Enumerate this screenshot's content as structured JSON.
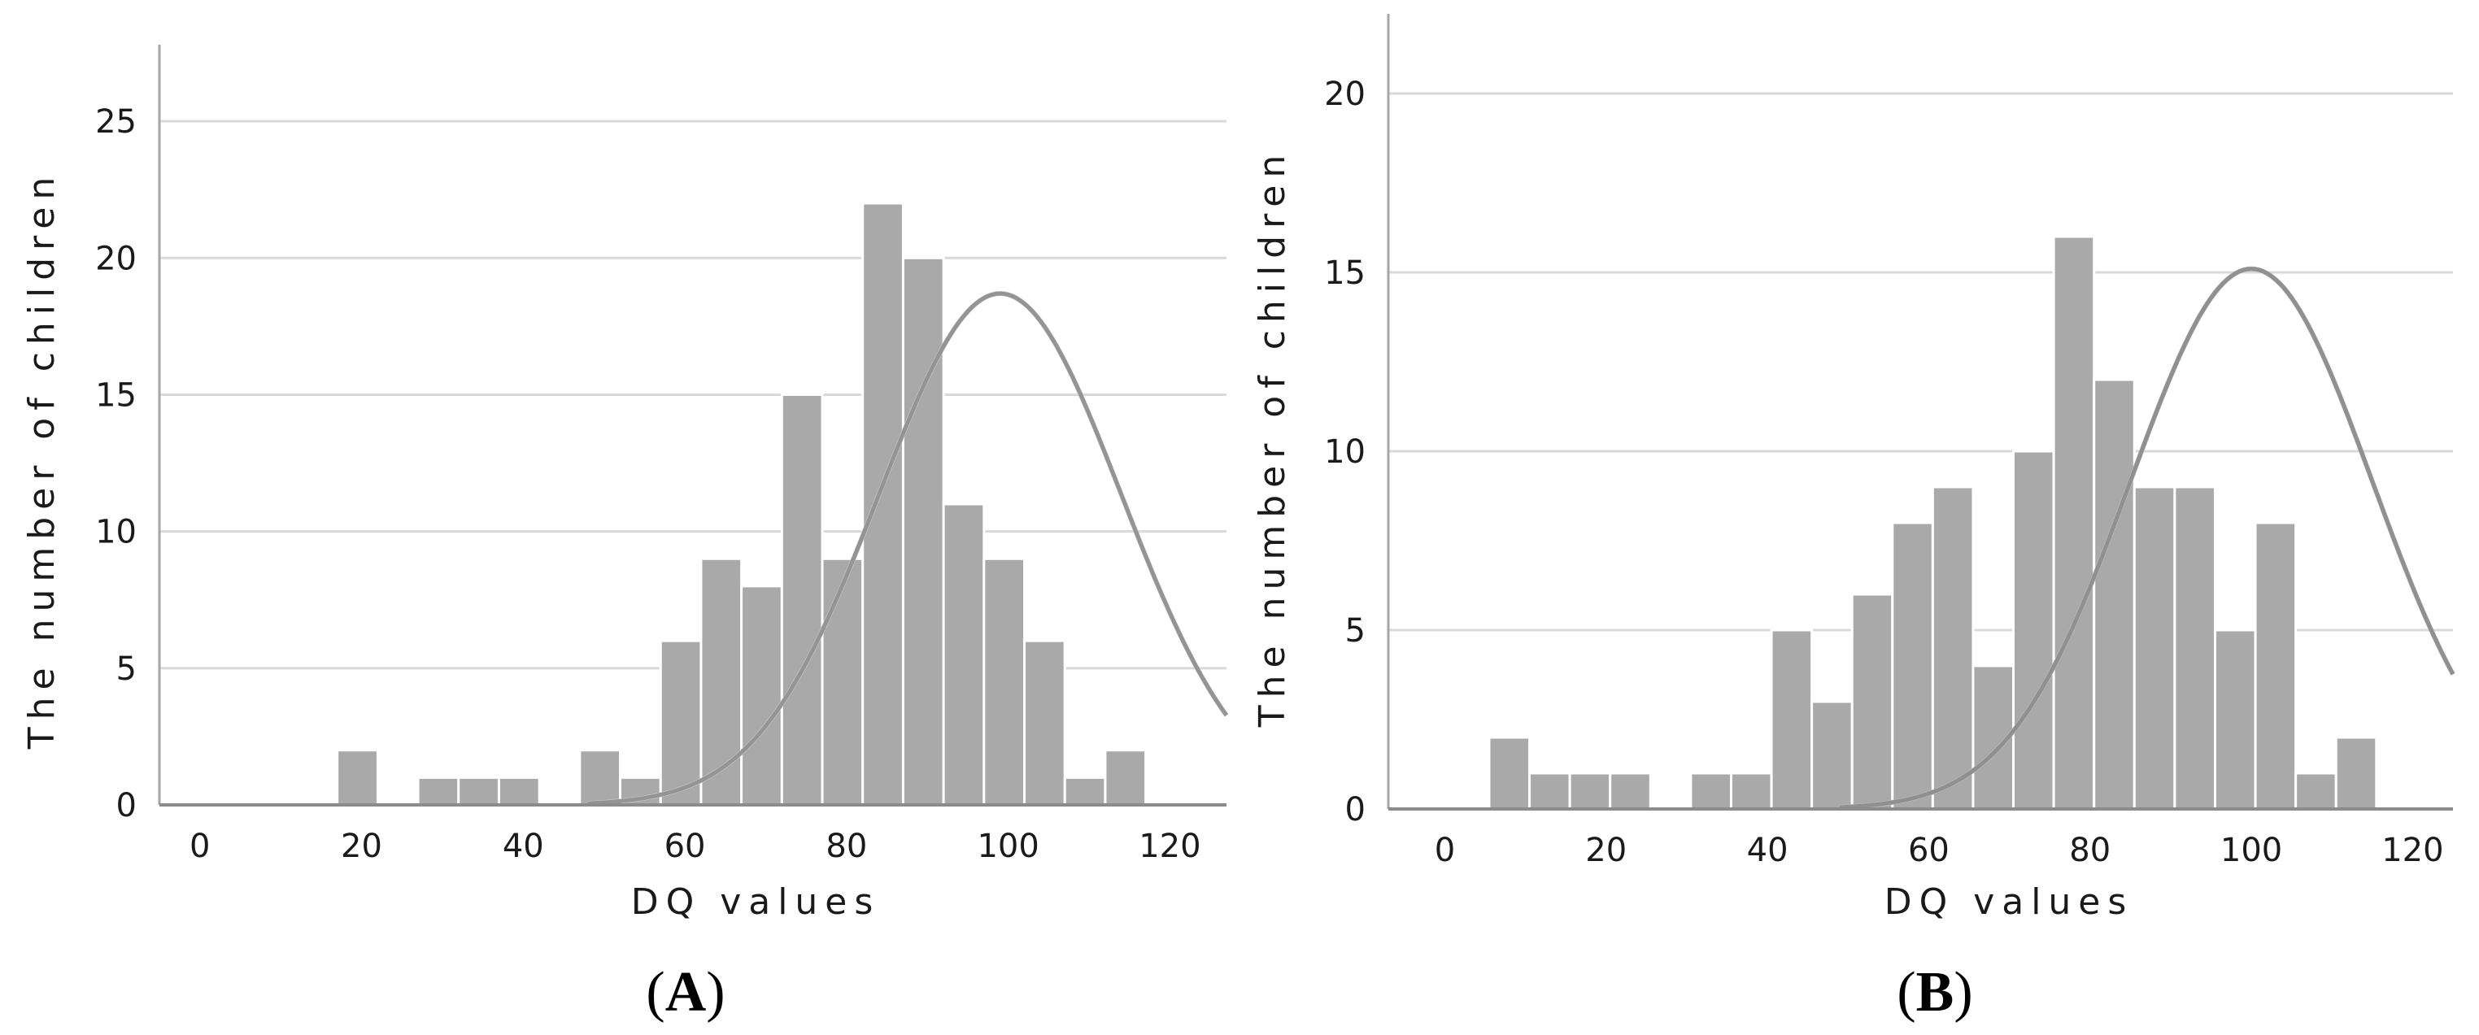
{
  "chart_data": [
    {
      "type": "bar",
      "panel_label": "A",
      "xlabel": "DQ values",
      "ylabel": "The number of children",
      "xlim": [
        -5,
        127
      ],
      "ylim": [
        0,
        27.5
      ],
      "xticks": [
        0,
        20,
        40,
        60,
        80,
        100,
        120
      ],
      "yticks": [
        0,
        5,
        10,
        15,
        20,
        25
      ],
      "grid": true,
      "bin_width": 5,
      "bins": [
        {
          "start": 17,
          "value": 2
        },
        {
          "start": 22,
          "value": 0
        },
        {
          "start": 27,
          "value": 1
        },
        {
          "start": 32,
          "value": 1
        },
        {
          "start": 37,
          "value": 1
        },
        {
          "start": 42,
          "value": 0
        },
        {
          "start": 47,
          "value": 2
        },
        {
          "start": 52,
          "value": 1
        },
        {
          "start": 57,
          "value": 6
        },
        {
          "start": 62,
          "value": 9
        },
        {
          "start": 67,
          "value": 8
        },
        {
          "start": 72,
          "value": 15
        },
        {
          "start": 77,
          "value": 9
        },
        {
          "start": 82,
          "value": 22
        },
        {
          "start": 87,
          "value": 20
        },
        {
          "start": 92,
          "value": 11
        },
        {
          "start": 97,
          "value": 9
        },
        {
          "start": 102,
          "value": 6
        },
        {
          "start": 107,
          "value": 1
        },
        {
          "start": 112,
          "value": 2
        }
      ],
      "normal_curve": {
        "mean": 99,
        "sd": 15,
        "peak": 18.7,
        "x_start": 48,
        "x_end": 127
      },
      "colors": {
        "bar": "#a9a9a9",
        "bar_edge": "#ffffff",
        "curve_front": "#808080",
        "curve_back": "#d0d0d0",
        "grid": "#d9d9d9",
        "axis": "#a6a6a6"
      }
    },
    {
      "type": "bar",
      "panel_label": "B",
      "xlabel": "DQ values",
      "ylabel": "The number of children",
      "xlim": [
        -7,
        125
      ],
      "ylim": [
        0,
        22
      ],
      "xticks": [
        0,
        20,
        40,
        60,
        80,
        100,
        120
      ],
      "yticks": [
        0,
        5,
        10,
        15,
        20
      ],
      "grid": true,
      "bin_width": 5,
      "bins": [
        {
          "start": 5.5,
          "value": 2
        },
        {
          "start": 10.5,
          "value": 1
        },
        {
          "start": 15.5,
          "value": 1
        },
        {
          "start": 20.5,
          "value": 1
        },
        {
          "start": 25.5,
          "value": 0
        },
        {
          "start": 30.5,
          "value": 1
        },
        {
          "start": 35.5,
          "value": 1
        },
        {
          "start": 40.5,
          "value": 5
        },
        {
          "start": 45.5,
          "value": 3
        },
        {
          "start": 50.5,
          "value": 6
        },
        {
          "start": 55.5,
          "value": 8
        },
        {
          "start": 60.5,
          "value": 9
        },
        {
          "start": 65.5,
          "value": 4
        },
        {
          "start": 70.5,
          "value": 10
        },
        {
          "start": 75.5,
          "value": 16
        },
        {
          "start": 80.5,
          "value": 12
        },
        {
          "start": 85.5,
          "value": 9
        },
        {
          "start": 90.5,
          "value": 9
        },
        {
          "start": 95.5,
          "value": 5
        },
        {
          "start": 100.5,
          "value": 8
        },
        {
          "start": 105.5,
          "value": 1
        },
        {
          "start": 110.5,
          "value": 2
        }
      ],
      "normal_curve": {
        "mean": 100,
        "sd": 15,
        "peak": 15.1,
        "x_start": 49,
        "x_end": 125
      },
      "colors": {
        "bar": "#a9a9a9",
        "bar_edge": "#ffffff",
        "curve_front": "#808080",
        "curve_back": "#c0c0c0",
        "grid": "#d9d9d9",
        "axis": "#a6a6a6"
      }
    }
  ]
}
